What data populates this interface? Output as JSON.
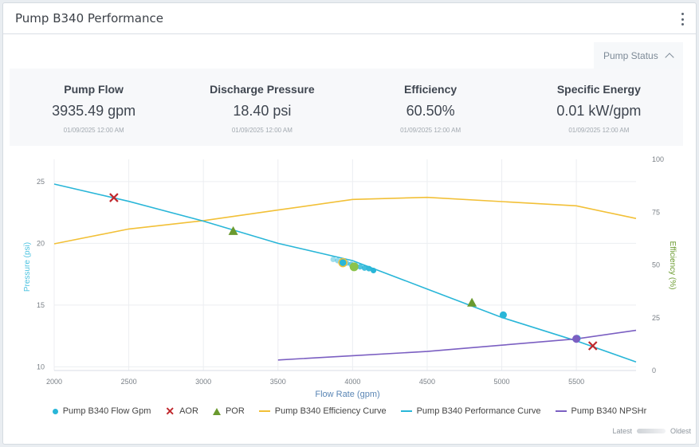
{
  "header": {
    "title": "Pump B340 Performance",
    "menu_icon": "kebab-menu-icon"
  },
  "status_toggle": {
    "label": "Pump Status",
    "icon": "chevron-up-icon"
  },
  "kpis": [
    {
      "title": "Pump Flow",
      "value": "3935.49 gpm",
      "timestamp": "01/09/2025 12:00 AM"
    },
    {
      "title": "Discharge Pressure",
      "value": "18.40 psi",
      "timestamp": "01/09/2025 12:00 AM"
    },
    {
      "title": "Efficiency",
      "value": "60.50%",
      "timestamp": "01/09/2025 12:00 AM"
    },
    {
      "title": "Specific Energy",
      "value": "0.01 kW/gpm",
      "timestamp": "01/09/2025 12:00 AM"
    }
  ],
  "colors": {
    "flow": "#29b6d8",
    "aor": "#c0282d",
    "por": "#6a9a2e",
    "efficiency": "#f2c037",
    "performance": "#29b6d8",
    "npshr": "#7b5fc2",
    "latest_point": "#8bc34a"
  },
  "chart_data": {
    "type": "line",
    "xlabel": "Flow Rate (gpm)",
    "ylabel_left": "Pressure (psi)",
    "ylabel_right": "Efficiency (%)",
    "xlim": [
      2000,
      5900
    ],
    "ylim_left": [
      9.7,
      26.8
    ],
    "ylim_right": [
      0,
      100
    ],
    "x_ticks": [
      2000,
      2500,
      3000,
      3500,
      4000,
      4500,
      5000,
      5500
    ],
    "y_left_ticks": [
      10,
      15,
      20,
      25
    ],
    "y_right_ticks": [
      0,
      25,
      50,
      75,
      100
    ],
    "grid": true,
    "legend_position": "bottom",
    "series": [
      {
        "name": "Pump B340 Flow Gpm",
        "kind": "scatter",
        "axis": "left",
        "points": [
          [
            3870,
            18.7
          ],
          [
            3900,
            18.6
          ],
          [
            3935,
            18.45
          ],
          [
            3960,
            18.4
          ],
          [
            3990,
            18.3
          ],
          [
            4020,
            18.2
          ],
          [
            4050,
            18.1
          ],
          [
            4080,
            18.0
          ],
          [
            4110,
            17.95
          ],
          [
            4140,
            17.8
          ],
          [
            5010,
            14.2
          ],
          [
            5505,
            12.3
          ]
        ]
      },
      {
        "name": "AOR",
        "kind": "x-marker",
        "axis": "left",
        "points": [
          [
            2400,
            23.7
          ],
          [
            5610,
            11.7
          ]
        ]
      },
      {
        "name": "POR",
        "kind": "triangle",
        "axis": "left",
        "points": [
          [
            3200,
            21.0
          ],
          [
            4800,
            15.2
          ]
        ]
      },
      {
        "name": "Pump B340 Efficiency Curve",
        "kind": "line",
        "axis": "right",
        "points": [
          [
            2000,
            60
          ],
          [
            2500,
            67
          ],
          [
            3000,
            71
          ],
          [
            3500,
            76
          ],
          [
            4000,
            81
          ],
          [
            4500,
            82
          ],
          [
            5000,
            80
          ],
          [
            5500,
            78
          ],
          [
            5900,
            72
          ]
        ]
      },
      {
        "name": "Pump B340 Performance Curve",
        "kind": "line",
        "axis": "left",
        "points": [
          [
            2000,
            24.8
          ],
          [
            2500,
            23.4
          ],
          [
            3000,
            21.8
          ],
          [
            3500,
            20.0
          ],
          [
            4000,
            18.6
          ],
          [
            4500,
            16.3
          ],
          [
            5000,
            14.0
          ],
          [
            5500,
            12.1
          ],
          [
            5900,
            10.4
          ]
        ]
      },
      {
        "name": "Pump B340 NPSHr",
        "kind": "line",
        "axis": "right",
        "points": [
          [
            3500,
            5
          ],
          [
            4000,
            7
          ],
          [
            4500,
            9
          ],
          [
            5000,
            12
          ],
          [
            5500,
            15
          ],
          [
            5900,
            19
          ]
        ]
      }
    ],
    "highlight_points": [
      {
        "label": "latest",
        "x": 3935,
        "y": 18.4,
        "color_key": "latest_point"
      },
      {
        "label": "npshr-marker",
        "x": 5500,
        "y": 15,
        "axis": "right"
      }
    ]
  },
  "gradient_legend": {
    "start": "Latest",
    "end": "Oldest"
  }
}
